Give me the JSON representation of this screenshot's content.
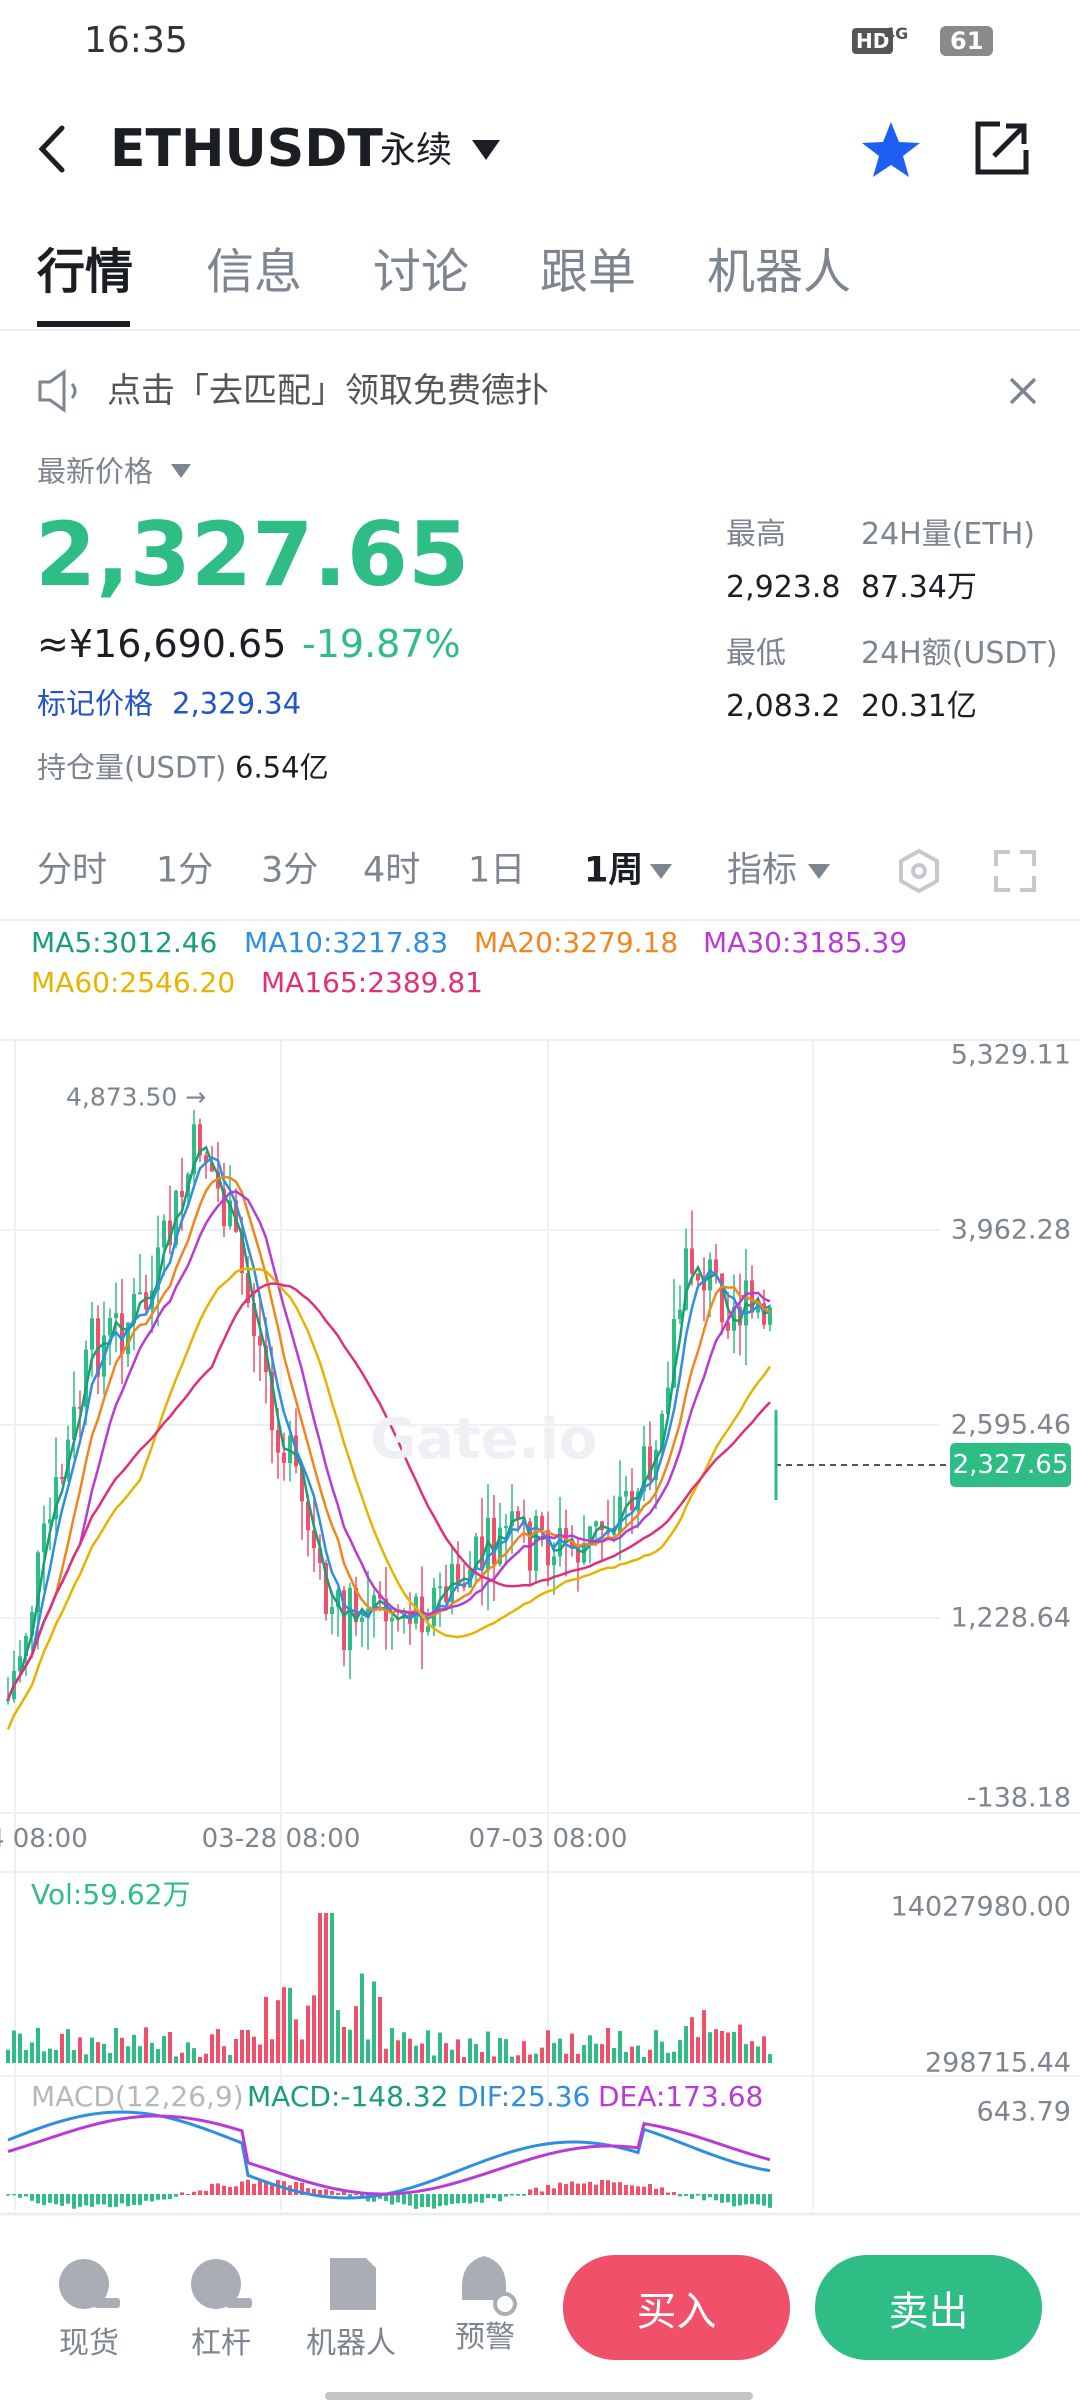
{
  "status_bar": {
    "time": "16:35",
    "hd": "HD",
    "network": "4G",
    "battery": "61"
  },
  "header": {
    "symbol": "ETHUSDT",
    "contract": "永续"
  },
  "tabs": [
    "行情",
    "信息",
    "讨论",
    "跟单",
    "机器人"
  ],
  "notice": "点击「去匹配」领取免费德扑",
  "price": {
    "label": "最新价格",
    "last": "2,327.65",
    "cny": "≈¥16,690.65",
    "change": "-19.87%",
    "mark_label": "标记价格",
    "mark": "2,329.34",
    "oi_label": "持仓量(USDT)",
    "oi": "6.54亿"
  },
  "stats": [
    {
      "label": "最高",
      "value": "2,923.8"
    },
    {
      "label": "24H量(ETH)",
      "value": "87.34万"
    },
    {
      "label": "最低",
      "value": "2,083.2"
    },
    {
      "label": "24H额(USDT)",
      "value": "20.31亿"
    }
  ],
  "intervals": [
    "分时",
    "1分",
    "3分",
    "4时",
    "1日",
    "1周",
    "指标"
  ],
  "ma": [
    "MA5:3012.46",
    "MA10:3217.83",
    "MA20:3279.18",
    "MA30:3185.39",
    "MA60:2546.20",
    "MA165:2389.81"
  ],
  "chart": {
    "price_axis": [
      "5,329.11",
      "3,962.28",
      "2,595.46",
      "1,228.64",
      "-138.18"
    ],
    "max_label": "4,873.50 →",
    "last_tag": "2,327.65",
    "watermark": "Gate.io",
    "time_axis": [
      "4 08:00",
      "03-28 08:00",
      "07-03 08:00"
    ]
  },
  "volume": {
    "label": "Vol:59.62万",
    "axis": [
      "14027980.00",
      "298715.44"
    ]
  },
  "macd": {
    "labels": [
      "MACD(12,26,9)",
      "MACD:-148.32",
      "DIF:25.36",
      "DEA:173.68"
    ],
    "axis": "643.79"
  },
  "nav": [
    "现货",
    "杠杆",
    "机器人",
    "预警"
  ],
  "actions": {
    "buy": "买入",
    "sell": "卖出"
  }
}
